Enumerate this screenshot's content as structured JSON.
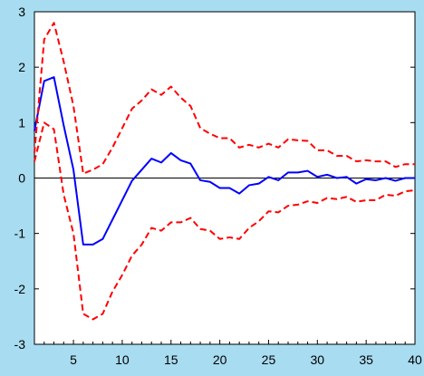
{
  "chart_data": {
    "type": "line",
    "title": "",
    "xlabel": "",
    "ylabel": "",
    "xlim": [
      1,
      40
    ],
    "ylim": [
      -3,
      3
    ],
    "x_ticks": [
      5,
      10,
      15,
      20,
      25,
      30,
      35,
      40
    ],
    "y_ticks": [
      -3,
      -2,
      -1,
      0,
      1,
      2,
      3
    ],
    "grid": false,
    "legend": "none",
    "zero_line": true,
    "colors": {
      "background": "#a8dcf0",
      "plot_area": "#ffffff",
      "response": "#0000ff",
      "bands": "#ff0000",
      "zero_line": "#000000"
    },
    "x": [
      1,
      2,
      3,
      4,
      5,
      6,
      7,
      8,
      9,
      10,
      11,
      12,
      13,
      14,
      15,
      16,
      17,
      18,
      19,
      20,
      21,
      22,
      23,
      24,
      25,
      26,
      27,
      28,
      29,
      30,
      31,
      32,
      33,
      34,
      35,
      36,
      37,
      38,
      39,
      40
    ],
    "series": [
      {
        "style": "solid",
        "values": [
          0.85,
          1.75,
          1.82,
          0.95,
          0.15,
          -1.2,
          -1.2,
          -1.1,
          -0.75,
          -0.4,
          -0.05,
          0.15,
          0.35,
          0.28,
          0.45,
          0.32,
          0.26,
          -0.04,
          -0.07,
          -0.18,
          -0.18,
          -0.28,
          -0.13,
          -0.1,
          0.02,
          -0.04,
          0.1,
          0.1,
          0.13,
          0.02,
          0.06,
          0.0,
          0.02,
          -0.1,
          -0.02,
          -0.04,
          0.0,
          -0.05,
          0.0,
          0.0
        ]
      },
      {
        "style": "dashed",
        "values": [
          0.45,
          2.5,
          2.8,
          2.1,
          1.3,
          0.08,
          0.15,
          0.25,
          0.55,
          0.9,
          1.25,
          1.4,
          1.6,
          1.5,
          1.65,
          1.45,
          1.3,
          0.9,
          0.8,
          0.72,
          0.72,
          0.55,
          0.6,
          0.55,
          0.62,
          0.55,
          0.7,
          0.68,
          0.67,
          0.5,
          0.5,
          0.4,
          0.4,
          0.3,
          0.32,
          0.3,
          0.3,
          0.2,
          0.25,
          0.25
        ]
      },
      {
        "style": "dashed",
        "values": [
          0.3,
          1.0,
          0.88,
          -0.3,
          -1.0,
          -2.45,
          -2.55,
          -2.45,
          -2.05,
          -1.75,
          -1.4,
          -1.2,
          -0.9,
          -0.95,
          -0.8,
          -0.8,
          -0.72,
          -0.92,
          -0.95,
          -1.1,
          -1.07,
          -1.1,
          -0.9,
          -0.78,
          -0.6,
          -0.62,
          -0.5,
          -0.48,
          -0.42,
          -0.45,
          -0.36,
          -0.38,
          -0.34,
          -0.43,
          -0.4,
          -0.4,
          -0.3,
          -0.32,
          -0.24,
          -0.22
        ]
      }
    ]
  }
}
